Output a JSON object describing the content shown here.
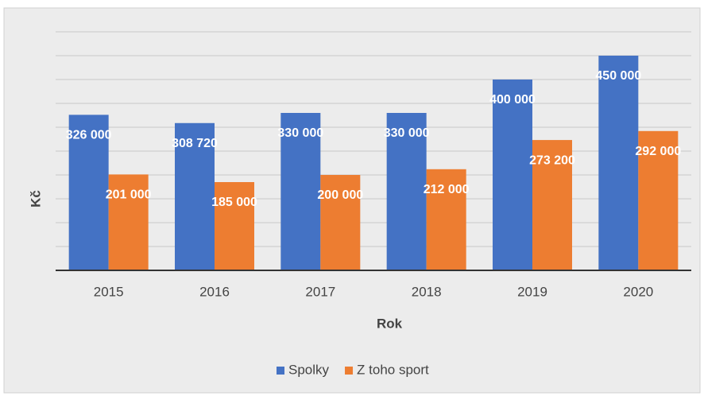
{
  "chart_data": {
    "type": "bar",
    "categories": [
      "2015",
      "2016",
      "2017",
      "2018",
      "2019",
      "2020"
    ],
    "series": [
      {
        "name": "Spolky",
        "color": "#4472c4",
        "values": [
          326000,
          308720,
          330000,
          330000,
          400000,
          450000
        ],
        "value_labels": [
          "326 000",
          "308 720",
          "330 000",
          "330 000",
          "400 000",
          "450 000"
        ]
      },
      {
        "name": "Z toho sport",
        "color": "#ed7d31",
        "values": [
          201000,
          185000,
          200000,
          212000,
          273200,
          292000
        ],
        "value_labels": [
          "201 000",
          "185 000",
          "200 000",
          "212 000",
          "273 200",
          "292 000"
        ]
      }
    ],
    "xlabel": "Rok",
    "ylabel": "Kč",
    "ylim": [
      0,
      500000
    ],
    "yticks": [
      0,
      50000,
      100000,
      150000,
      200000,
      250000,
      300000,
      350000,
      400000,
      450000,
      500000
    ],
    "grid": true,
    "legend": "bottom"
  }
}
